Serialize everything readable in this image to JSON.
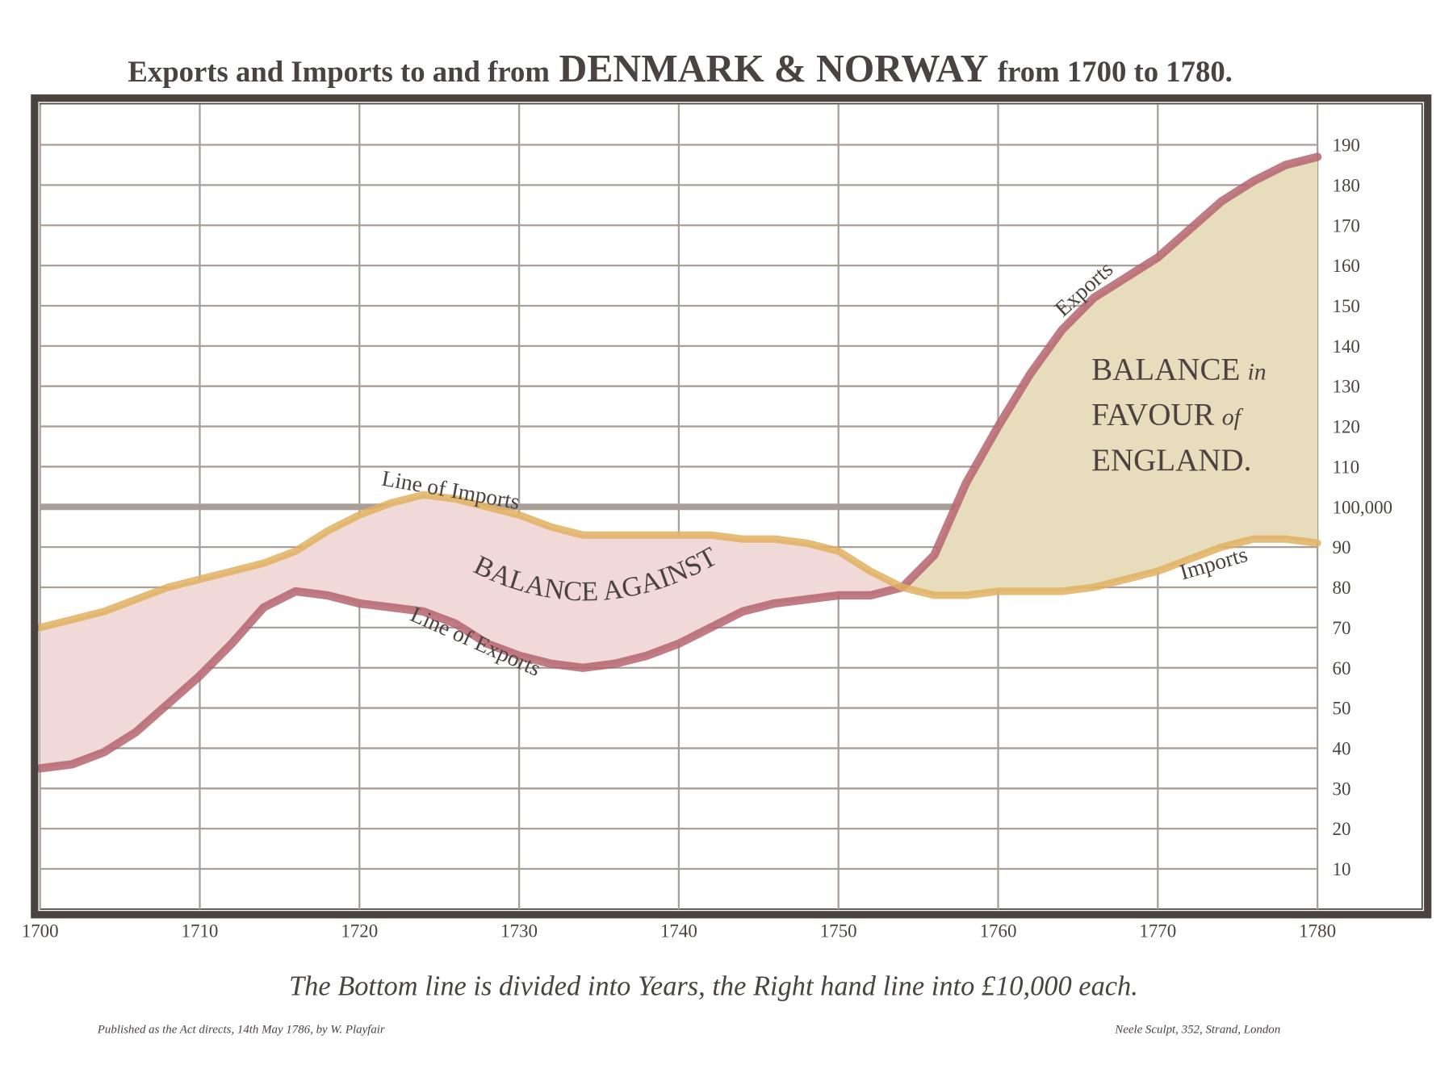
{
  "chart_data": {
    "type": "line",
    "title": [
      "Exports and Imports to and from",
      "DENMARK & NORWAY",
      "from 1700 to 1780."
    ],
    "x": [
      1700,
      1702,
      1704,
      1706,
      1708,
      1710,
      1712,
      1714,
      1716,
      1718,
      1720,
      1722,
      1724,
      1726,
      1728,
      1730,
      1732,
      1734,
      1736,
      1738,
      1740,
      1742,
      1744,
      1746,
      1748,
      1750,
      1752,
      1754,
      1756,
      1758,
      1760,
      1762,
      1764,
      1766,
      1768,
      1770,
      1772,
      1774,
      1776,
      1778,
      1780
    ],
    "series": [
      {
        "name": "Exports",
        "color": "#b5646f",
        "values": [
          35,
          36,
          39,
          44,
          51,
          58,
          66,
          75,
          79,
          78,
          76,
          75,
          74,
          71,
          66,
          63,
          61,
          60,
          61,
          63,
          66,
          70,
          74,
          76,
          77,
          78,
          78,
          80,
          88,
          106,
          120,
          133,
          144,
          152,
          157,
          162,
          169,
          176,
          181,
          185,
          187
        ]
      },
      {
        "name": "Imports",
        "color": "#e0b060",
        "values": [
          70,
          72,
          74,
          77,
          80,
          82,
          84,
          86,
          89,
          94,
          98,
          101,
          103,
          102,
          100,
          98,
          95,
          93,
          93,
          93,
          93,
          93,
          92,
          92,
          91,
          89,
          84,
          80,
          78,
          78,
          79,
          79,
          79,
          80,
          82,
          84,
          87,
          90,
          92,
          92,
          91
        ]
      }
    ],
    "xlim": [
      1700,
      1780
    ],
    "xticks": [
      1700,
      1710,
      1720,
      1730,
      1740,
      1750,
      1760,
      1770,
      1780
    ],
    "ylim": [
      0,
      200
    ],
    "yticks": [
      10,
      20,
      30,
      40,
      50,
      60,
      70,
      80,
      90,
      {
        "value": 100,
        "label": "100,000"
      },
      110,
      120,
      130,
      140,
      150,
      160,
      170,
      180,
      190
    ],
    "grid": true,
    "annotations": [
      "Line of Imports",
      "Line of Exports",
      "BALANCE AGAINST"
    ],
    "balance_favour": [
      [
        "BALANCE",
        "in"
      ],
      [
        "FAVOUR",
        "of"
      ],
      [
        "ENGLAND."
      ]
    ],
    "caption": "The Bottom line is divided into Years, the Right hand line into £10,000 each.",
    "publisher": "Published as the Act directs, 14th May 1786, by W. Playfair",
    "engraver": "Neele Sculpt, 352, Strand, London"
  }
}
